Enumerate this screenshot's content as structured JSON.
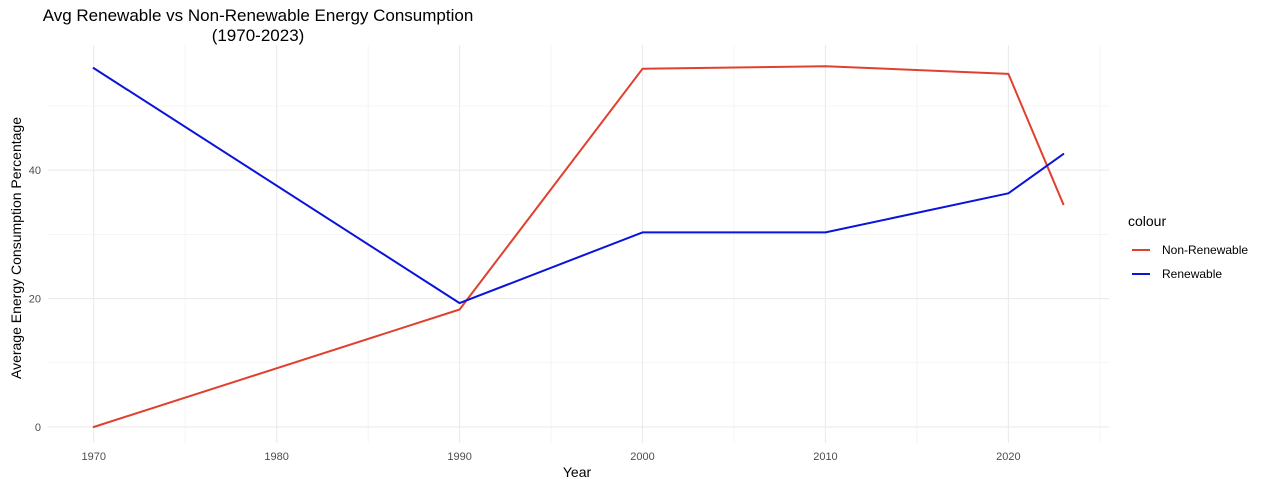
{
  "chart_data": {
    "type": "line",
    "title": "Avg Renewable vs Non-Renewable Energy Consumption\n(1970-2023)",
    "xlabel": "Year",
    "ylabel": "Average Energy Consumption Percentage",
    "xlim": [
      1967.5,
      2025.5
    ],
    "ylim": [
      -2.5,
      59.5
    ],
    "x_ticks": [
      1970,
      1980,
      1990,
      2000,
      2010,
      2020
    ],
    "y_ticks": [
      0,
      20,
      40
    ],
    "grid": true,
    "legend_title": "colour",
    "legend_position": "right",
    "series": [
      {
        "name": "Non-Renewable",
        "color": "#e0412f",
        "points": [
          [
            1970,
            0
          ],
          [
            1990,
            18.3
          ],
          [
            2000,
            55.8
          ],
          [
            2010,
            56.2
          ],
          [
            2020,
            55.0
          ],
          [
            2023,
            34.7
          ]
        ]
      },
      {
        "name": "Renewable",
        "color": "#0b14d9",
        "points": [
          [
            1970,
            55.9
          ],
          [
            1990,
            19.3
          ],
          [
            2000,
            30.3
          ],
          [
            2010,
            30.3
          ],
          [
            2020,
            36.4
          ],
          [
            2023,
            42.5
          ]
        ]
      }
    ]
  }
}
